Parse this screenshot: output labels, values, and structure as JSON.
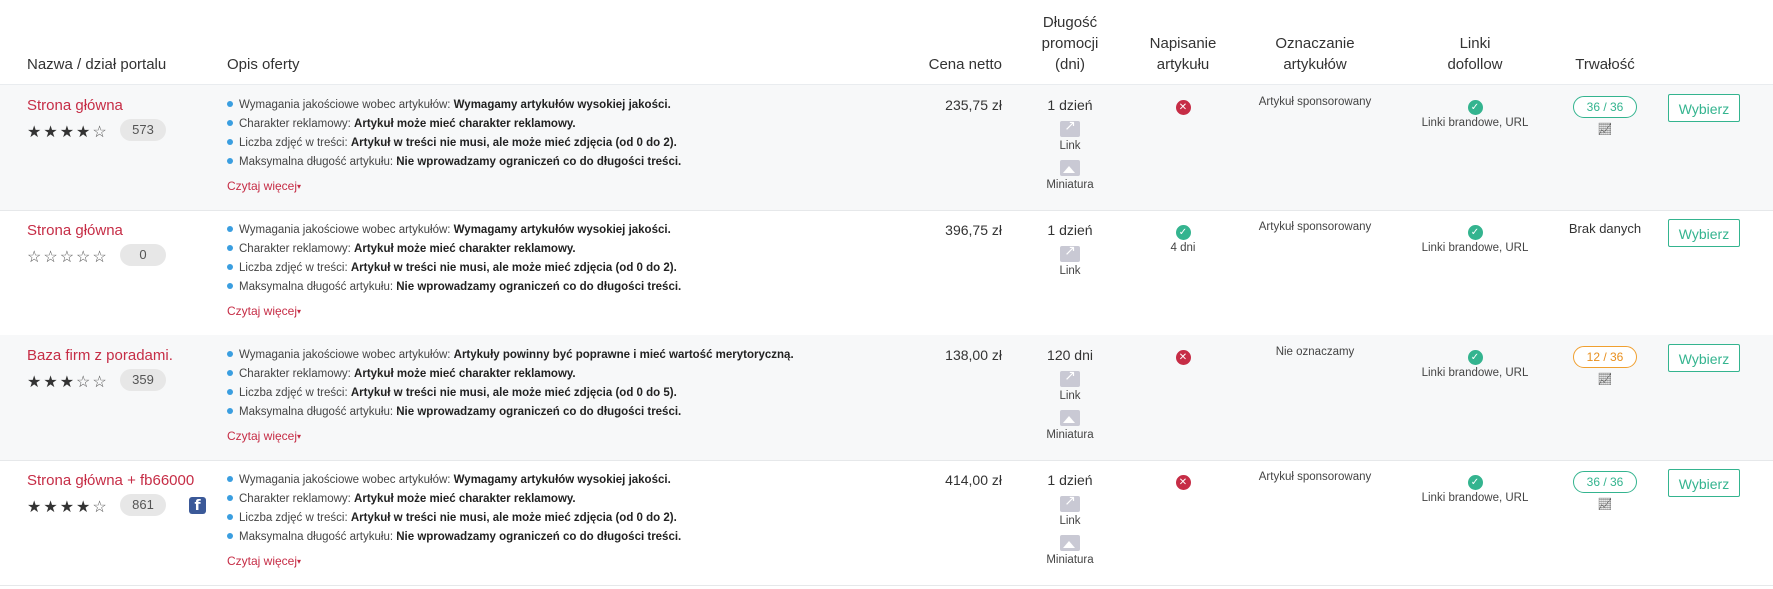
{
  "header": {
    "name": "Nazwa / dział portalu",
    "desc": "Opis oferty",
    "price": "Cena netto",
    "promo_1": "Długość",
    "promo_2": "promocji",
    "promo_3": "(dni)",
    "write_1": "Napisanie",
    "write_2": "artykułu",
    "mark_1": "Oznaczanie",
    "mark_2": "artykułów",
    "dof_1": "Linki",
    "dof_2": "dofollow",
    "dur": "Trwałość"
  },
  "labels": {
    "read_more": "Czytaj więcej",
    "select": "Wybierz",
    "link": "Link",
    "thumb": "Miniatura",
    "dof_value": "Linki brandowe, URL"
  },
  "rows": [
    {
      "name": "Strona główna",
      "rating": 4,
      "count": "573",
      "facebook": false,
      "desc": [
        {
          "k": "Wymagania jakościowe wobec artykułów: ",
          "v": "Wymagamy artykułów wysokiej jakości."
        },
        {
          "k": "Charakter reklamowy: ",
          "v": "Artykuł może mieć charakter reklamowy."
        },
        {
          "k": "Liczba zdjęć w treści: ",
          "v": "Artykuł w treści nie musi, ale może mieć zdjęcia (od 0 do 2)."
        },
        {
          "k": "Maksymalna długość artykułu: ",
          "v": "Nie wprowadzamy ograniczeń co do długości treści."
        }
      ],
      "price": "235,75 zł",
      "promo": "1 dzień",
      "thumb": true,
      "write": false,
      "write_days": "",
      "mark": "Artykuł sponsorowany",
      "dur_type": "pill",
      "dur": "36 / 36",
      "dur_color": "green"
    },
    {
      "name": "Strona główna",
      "rating": 0,
      "count": "0",
      "facebook": false,
      "desc": [
        {
          "k": "Wymagania jakościowe wobec artykułów: ",
          "v": "Wymagamy artykułów wysokiej jakości."
        },
        {
          "k": "Charakter reklamowy: ",
          "v": "Artykuł może mieć charakter reklamowy."
        },
        {
          "k": "Liczba zdjęć w treści: ",
          "v": "Artykuł w treści nie musi, ale może mieć zdjęcia (od 0 do 2)."
        },
        {
          "k": "Maksymalna długość artykułu: ",
          "v": "Nie wprowadzamy ograniczeń co do długości treści."
        }
      ],
      "price": "396,75 zł",
      "promo": "1 dzień",
      "thumb": false,
      "write": true,
      "write_days": "4 dni",
      "mark": "Artykuł sponsorowany",
      "dur_type": "text",
      "dur": "Brak danych",
      "dur_color": ""
    },
    {
      "name": "Baza firm z poradami.",
      "rating": 3,
      "count": "359",
      "facebook": false,
      "desc": [
        {
          "k": "Wymagania jakościowe wobec artykułów: ",
          "v": "Artykuły powinny być poprawne i mieć wartość merytoryczną."
        },
        {
          "k": "Charakter reklamowy: ",
          "v": "Artykuł może mieć charakter reklamowy."
        },
        {
          "k": "Liczba zdjęć w treści: ",
          "v": "Artykuł w treści nie musi, ale może mieć zdjęcia (od 0 do 5)."
        },
        {
          "k": "Maksymalna długość artykułu: ",
          "v": "Nie wprowadzamy ograniczeń co do długości treści."
        }
      ],
      "price": "138,00 zł",
      "promo": "120 dni",
      "thumb": true,
      "write": false,
      "write_days": "",
      "mark": "Nie oznaczamy",
      "dur_type": "pill",
      "dur": "12 / 36",
      "dur_color": "orange"
    },
    {
      "name": "Strona główna + fb66000",
      "rating": 4,
      "count": "861",
      "facebook": true,
      "desc": [
        {
          "k": "Wymagania jakościowe wobec artykułów: ",
          "v": "Wymagamy artykułów wysokiej jakości."
        },
        {
          "k": "Charakter reklamowy: ",
          "v": "Artykuł może mieć charakter reklamowy."
        },
        {
          "k": "Liczba zdjęć w treści: ",
          "v": "Artykuł w treści nie musi, ale może mieć zdjęcia (od 0 do 2)."
        },
        {
          "k": "Maksymalna długość artykułu: ",
          "v": "Nie wprowadzamy ograniczeń co do długości treści."
        }
      ],
      "price": "414,00 zł",
      "promo": "1 dzień",
      "thumb": true,
      "write": false,
      "write_days": "",
      "mark": "Artykuł sponsorowany",
      "dur_type": "pill",
      "dur": "36 / 36",
      "dur_color": "green"
    }
  ],
  "colors": {
    "accent_red": "#c62d46",
    "accent_green": "#34b48f",
    "accent_orange": "#f0a030",
    "bullet_blue": "#3a9ee0"
  }
}
